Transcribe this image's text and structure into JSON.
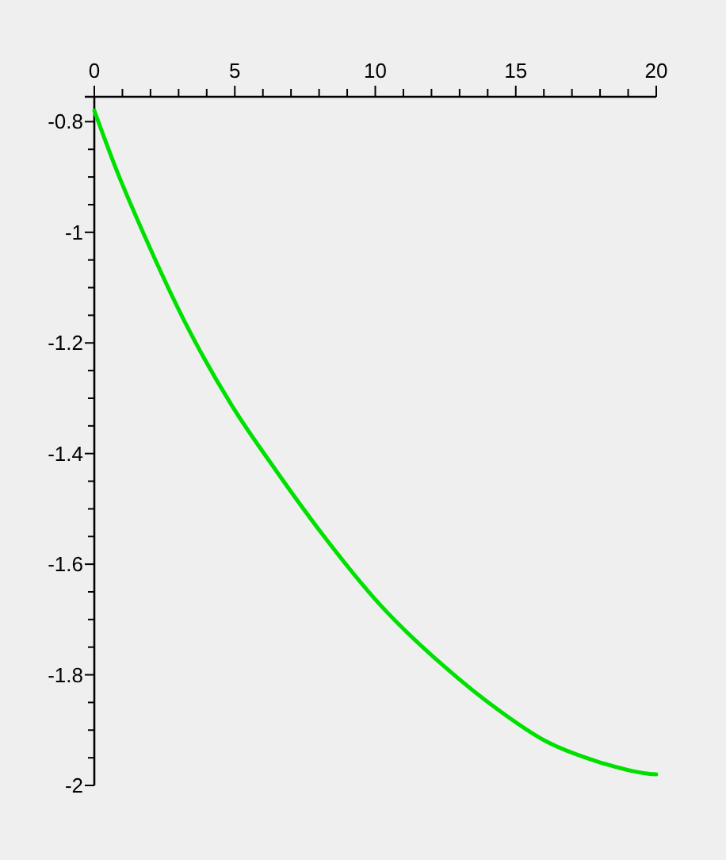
{
  "chart_data": {
    "type": "line",
    "x": [
      0,
      0.78,
      1.82,
      3.23,
      4.93,
      6.43,
      8.12,
      10.2,
      12.46,
      14.34,
      16.03,
      17.92,
      19.6,
      20
    ],
    "series": [
      {
        "color": "#00e000",
        "values": [
          -0.78,
          -0.886,
          -1.01,
          -1.163,
          -1.316,
          -1.428,
          -1.546,
          -1.675,
          -1.785,
          -1.862,
          -1.919,
          -1.957,
          -1.978,
          -1.98
        ]
      }
    ],
    "xlim": [
      0,
      20
    ],
    "ylim": [
      -2,
      -0.755
    ],
    "xticks": [
      0,
      {
        "value": 1,
        "label": null
      },
      {
        "value": 2,
        "label": null
      },
      {
        "value": 3,
        "label": null
      },
      {
        "value": 4,
        "label": null
      },
      5,
      {
        "value": 6,
        "label": null
      },
      {
        "value": 7,
        "label": null
      },
      {
        "value": 8,
        "label": null
      },
      {
        "value": 9,
        "label": null
      },
      10,
      {
        "value": 11,
        "label": null
      },
      {
        "value": 12,
        "label": null
      },
      {
        "value": 13,
        "label": null
      },
      {
        "value": 14,
        "label": null
      },
      15,
      {
        "value": 16,
        "label": null
      },
      {
        "value": 17,
        "label": null
      },
      {
        "value": 18,
        "label": null
      },
      {
        "value": 19,
        "label": null
      },
      20
    ],
    "yticks": [
      -0.8,
      {
        "value": -0.85,
        "label": null
      },
      {
        "value": -0.9,
        "label": null
      },
      {
        "value": -0.95,
        "label": null
      },
      -1,
      {
        "value": -1.05,
        "label": null
      },
      {
        "value": -1.1,
        "label": null
      },
      {
        "value": -1.15,
        "label": null
      },
      -1.2,
      {
        "value": -1.25,
        "label": null
      },
      {
        "value": -1.3,
        "label": null
      },
      {
        "value": -1.35,
        "label": null
      },
      -1.4,
      {
        "value": -1.45,
        "label": null
      },
      {
        "value": -1.5,
        "label": null
      },
      {
        "value": -1.55,
        "label": null
      },
      -1.6,
      {
        "value": -1.65,
        "label": null
      },
      {
        "value": -1.7,
        "label": null
      },
      {
        "value": -1.75,
        "label": null
      },
      -1.8,
      {
        "value": -1.85,
        "label": null
      },
      {
        "value": -1.9,
        "label": null
      },
      {
        "value": -1.95,
        "label": null
      },
      -2
    ],
    "grid": false,
    "marker": "none",
    "line_style": "solid"
  }
}
